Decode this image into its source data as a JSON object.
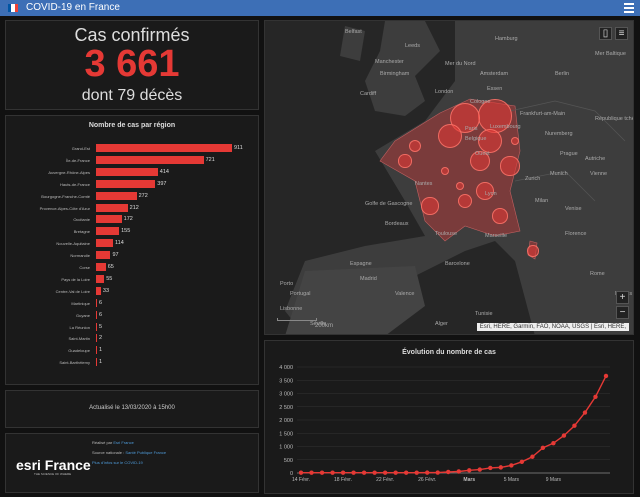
{
  "app": {
    "title": "COVID-19 en France",
    "flag_colors": [
      "#0055a4",
      "#ffffff",
      "#ef4135"
    ]
  },
  "kpi": {
    "title": "Cas confirmés",
    "value": "3 661",
    "subtitle": "dont 79 décès"
  },
  "region_chart": {
    "title": "Nombre de cas par région"
  },
  "update": {
    "text": "Actualisé le 13/03/2020 à 15h00"
  },
  "brand": {
    "logo": "esri France",
    "tagline": "THE SCIENCE OF WHERE"
  },
  "credits": {
    "made_by_label": "Réalisé par",
    "made_by_link": "Esri France",
    "source_label": "Source nationale :",
    "source_link": "Santé Publique France",
    "more_link": "Plus d'infos sur le COVID-19"
  },
  "map": {
    "attribution": "Esri, HERE, Garmin, FAO, NOAA, USGS | Esri, HERE,",
    "scale": "200km",
    "labels": [
      "Belfast",
      "Leeds",
      "Manchester",
      "Birmingham",
      "Cardiff",
      "London",
      "Hamburg",
      "Amsterdam",
      "Berlin",
      "Essen",
      "Cologne",
      "Frankfurt-am-Main",
      "Luxembourg",
      "Nuremberg",
      "Prague",
      "Munich",
      "Vienne",
      "Zurich",
      "Milan",
      "Bordeaux",
      "Toulouse",
      "Marseille",
      "Lyon",
      "Nantes",
      "Paris",
      "Barcelone",
      "Madrid",
      "Valence",
      "Porto",
      "Lisbonne",
      "Séville",
      "Alger",
      "Rome",
      "Venise",
      "Florence",
      "Naples",
      "Belgique",
      "Ouest",
      "République tchèque",
      "Autriche",
      "Espagne",
      "Portugal",
      "Golfe de Gascogne",
      "Mer Baltique",
      "Mer du Nord",
      "Tunisie"
    ],
    "zoom_in": "+",
    "zoom_out": "−"
  },
  "chart_data": [
    {
      "type": "bar",
      "title": "Nombre de cas par région",
      "categories": [
        "Grand-Est",
        "Île-de-France",
        "Auvergne-Rhône-Alpes",
        "Hauts-de-France",
        "Bourgogne-Franche-Comté",
        "Provence-Alpes-Côte d'Azur",
        "Occitanie",
        "Bretagne",
        "Nouvelle-Aquitaine",
        "Normandie",
        "Corse",
        "Pays de la Loire",
        "Centre-Val de Loire",
        "Martinique",
        "Guyane",
        "La Réunion",
        "Saint-Martin",
        "Guadeloupe",
        "Saint-Barthélemy"
      ],
      "values": [
        911,
        721,
        414,
        397,
        272,
        212,
        172,
        155,
        114,
        97,
        65,
        55,
        33,
        6,
        6,
        5,
        2,
        1,
        1
      ]
    },
    {
      "type": "line",
      "title": "Évolution du nombre de cas",
      "x_ticks": [
        "14 Févr.",
        "18 Févr.",
        "22 Févr.",
        "26 Févr.",
        "Mars",
        "5 Mars",
        "9 Mars"
      ],
      "y_ticks": [
        0,
        500,
        1000,
        1500,
        2000,
        2500,
        3000,
        3500,
        4000
      ],
      "y_tick_labels": [
        "0",
        "500",
        "1 000",
        "1 500",
        "2 000",
        "2 500",
        "3 000",
        "3 500",
        "4 000"
      ],
      "ylim": [
        0,
        4000
      ],
      "values": [
        12,
        12,
        12,
        12,
        12,
        12,
        12,
        12,
        12,
        12,
        12,
        12,
        14,
        18,
        38,
        57,
        100,
        130,
        191,
        212,
        285,
        423,
        613,
        949,
        1126,
        1412,
        1784,
        2281,
        2876,
        3661
      ]
    }
  ]
}
